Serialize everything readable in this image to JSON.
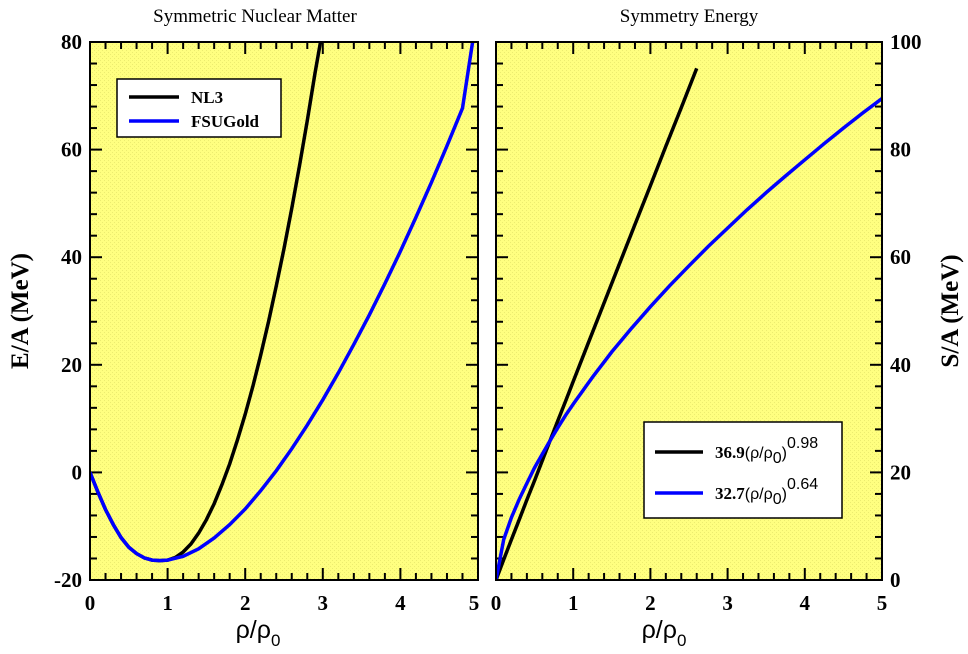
{
  "chart_data": [
    {
      "type": "line",
      "title": "Symmetric Nuclear Matter",
      "xlabel": "ρ/ρ0",
      "ylabel": "E/A  (MeV)",
      "xlim": [
        0,
        5
      ],
      "ylim": [
        -20,
        80
      ],
      "xticks": [
        "0",
        "1",
        "2",
        "3",
        "4",
        "5"
      ],
      "yticks": [
        "-20",
        "0",
        "20",
        "40",
        "60",
        "80"
      ],
      "background": "#ffff80",
      "legend_position": "top-left",
      "series": [
        {
          "name": "NL3",
          "color": "#000000",
          "x": [
            0,
            0.1,
            0.2,
            0.3,
            0.4,
            0.5,
            0.6,
            0.7,
            0.8,
            0.9,
            1.0,
            1.1,
            1.2,
            1.3,
            1.4,
            1.5,
            1.6,
            1.7,
            1.8,
            1.9,
            2.0,
            2.1,
            2.2,
            2.3,
            2.4,
            2.5,
            2.6,
            2.7,
            2.8,
            2.9,
            2.97
          ],
          "y": [
            0,
            -3.6,
            -6.9,
            -9.7,
            -12.1,
            -13.9,
            -15.1,
            -15.9,
            -16.3,
            -16.4,
            -16.3,
            -15.8,
            -14.8,
            -13.3,
            -11.3,
            -8.8,
            -5.8,
            -2.3,
            1.6,
            6.0,
            10.8,
            16.1,
            21.8,
            28.0,
            34.6,
            41.6,
            49.1,
            57.0,
            65.4,
            74.2,
            80.0
          ]
        },
        {
          "name": "FSUGold",
          "color": "#0000ff",
          "x": [
            0,
            0.1,
            0.2,
            0.3,
            0.4,
            0.5,
            0.6,
            0.7,
            0.8,
            0.9,
            1.0,
            1.2,
            1.4,
            1.6,
            1.8,
            2.0,
            2.2,
            2.4,
            2.6,
            2.8,
            3.0,
            3.2,
            3.4,
            3.6,
            3.8,
            4.0,
            4.2,
            4.4,
            4.6,
            4.8,
            4.93
          ],
          "y": [
            0,
            -3.6,
            -6.9,
            -9.7,
            -12.1,
            -13.9,
            -15.1,
            -15.9,
            -16.3,
            -16.4,
            -16.3,
            -15.6,
            -14.2,
            -12.2,
            -9.7,
            -6.8,
            -3.4,
            0.3,
            4.4,
            8.8,
            13.5,
            18.5,
            23.8,
            29.3,
            35.1,
            41.1,
            47.4,
            53.9,
            60.7,
            67.7,
            80.0
          ]
        }
      ]
    },
    {
      "type": "line",
      "title": "Symmetry Energy",
      "xlabel": "ρ/ρ0",
      "ylabel": "S/A  (MeV)",
      "xlim": [
        0,
        5
      ],
      "ylim": [
        0,
        100
      ],
      "xticks": [
        "0",
        "1",
        "2",
        "3",
        "4",
        "5"
      ],
      "yticks": [
        "0",
        "20",
        "40",
        "60",
        "80",
        "100"
      ],
      "background": "#ffff80",
      "legend_position": "bottom-right",
      "series": [
        {
          "name": "36.9(ρ/ρ0)^0.98",
          "coefficient": 36.9,
          "exponent": 0.98,
          "color": "#000000",
          "x": [
            0,
            0.1,
            0.2,
            0.3,
            0.4,
            0.5,
            0.6,
            0.7,
            0.8,
            0.9,
            1.0,
            1.2,
            1.4,
            1.6,
            1.8,
            2.0,
            2.2,
            2.4,
            2.6
          ],
          "y": [
            0,
            3.8,
            7.5,
            11.2,
            14.9,
            18.5,
            22.2,
            25.9,
            29.6,
            33.2,
            36.9,
            44.2,
            51.5,
            58.8,
            66.1,
            73.3,
            80.6,
            87.8,
            95.1
          ]
        },
        {
          "name": "32.7(ρ/ρ0)^0.64",
          "coefficient": 32.7,
          "exponent": 0.64,
          "color": "#0000ff",
          "x": [
            0,
            0.1,
            0.2,
            0.3,
            0.4,
            0.5,
            0.6,
            0.7,
            0.8,
            0.9,
            1.0,
            1.25,
            1.5,
            1.75,
            2.0,
            2.25,
            2.5,
            2.75,
            3.0,
            3.25,
            3.5,
            3.75,
            4.0,
            4.25,
            4.5,
            4.75,
            5.0
          ],
          "y": [
            0,
            7.5,
            11.6,
            15.0,
            18.0,
            20.9,
            23.4,
            25.9,
            28.3,
            30.6,
            32.7,
            37.7,
            42.4,
            46.7,
            50.8,
            54.7,
            58.4,
            62.0,
            65.4,
            68.8,
            72.0,
            75.1,
            78.1,
            81.1,
            84.0,
            86.8,
            89.5
          ]
        }
      ],
      "legend_entries": [
        {
          "coef": "36.9",
          "base": "(ρ/ρ",
          "sub": "0",
          "close": ")",
          "exp": "0.98"
        },
        {
          "coef": "32.7",
          "base": "(ρ/ρ",
          "sub": "0",
          "close": ")",
          "exp": "0.64"
        }
      ]
    }
  ],
  "axis_label_parts": {
    "rho": "ρ/ρ",
    "sub": "0"
  }
}
